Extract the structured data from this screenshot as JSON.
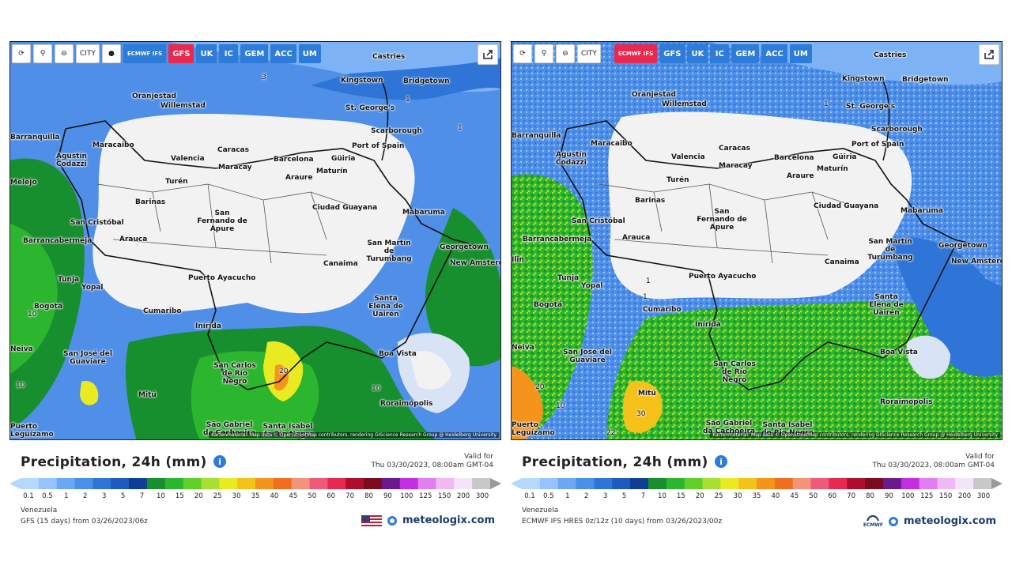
{
  "left": {
    "toolbar": {
      "buttons": [
        "⟳",
        "⚲",
        "⊖",
        "CITY",
        "●"
      ],
      "models": [
        "ECMWF IFS",
        "GFS",
        "UK",
        "IC",
        "GEM",
        "ACC",
        "UM"
      ],
      "active_model": "GFS"
    },
    "cities": [
      "Castries",
      "Kingstown",
      "Bridgetown",
      "St. George's",
      "Oranjestad",
      "Willemstad",
      "Scarborough",
      "Port of Spain",
      "Barranquilla",
      "Maracaibo",
      "Agustín Codazzi",
      "Caracas",
      "Valencia",
      "Maracay",
      "Barcelona",
      "Güiria",
      "Maturín",
      "Araure",
      "Turén",
      "Barinas",
      "San Fernando de Apure",
      "Ciudad Guayana",
      "Mabaruma",
      "San Cristóbal",
      "Barrancabermeja",
      "Arauca",
      "Georgetown",
      "San Martín de Turumbang",
      "New Amsterdam",
      "Canaima",
      "Tunja",
      "Yopal",
      "Puerto Ayacucho",
      "Bogotá",
      "Santa Elena de Uairén",
      "Cumaribo",
      "Inírida",
      "Boa Vista",
      "San José del Guaviare",
      "San Carlos de Río Negro",
      "Mitú",
      "Roraimópolis",
      "São Gabriel da Cachoeira",
      "Santa Isabel do Rio Negro",
      "Puerto Leguízamo",
      "Neiva",
      "Melejo"
    ],
    "contour_labels": [
      "3",
      "1",
      "1",
      "10",
      "20",
      "10",
      "10"
    ],
    "attribution": "Kartenmaterial: Map data © OpenStreetMap contributors, rendering GIScience Research Group @ Heidelberg University",
    "legend": {
      "title": "Precipitation, 24h (mm)",
      "valid_label": "Valid for",
      "valid_time": "Thu 03/30/2023, 08:00am GMT-04",
      "region": "Venezuela",
      "source": "GFS (15 days) from 03/26/2023/06z",
      "brand": "meteologix.com"
    }
  },
  "right": {
    "toolbar": {
      "buttons": [
        "⟳",
        "⚲",
        "⊖",
        "CITY"
      ],
      "models": [
        "ECMWF IFS",
        "GFS",
        "UK",
        "IC",
        "GEM",
        "ACC",
        "UM"
      ],
      "active_model": "ECMWF IFS"
    },
    "contour_labels": [
      "1",
      "1",
      "1",
      "10",
      "20",
      "30",
      "22"
    ],
    "attribution": "Kartenmaterial: Map data © OpenStreetMap contributors, rendering GIScience Research Group @ Heidelberg University",
    "legend": {
      "title": "Precipitation, 24h (mm)",
      "valid_label": "Valid for",
      "valid_time": "Thu 03/30/2023, 08:00am GMT-04",
      "region": "Venezuela",
      "source": "ECMWF IFS HRES 0z/12z (10 days) from 03/26/2023/00z",
      "brand": "meteologix.com",
      "ecmwf_logo": "ECMWF"
    }
  },
  "scale": {
    "ticks": [
      "0.1",
      "0.5",
      "1",
      "2",
      "3",
      "5",
      "7",
      "10",
      "15",
      "20",
      "25",
      "30",
      "35",
      "40",
      "45",
      "50",
      "60",
      "70",
      "80",
      "90",
      "100",
      "125",
      "150",
      "200",
      "300"
    ],
    "colors": [
      "#b6d7ff",
      "#96c3ff",
      "#6aa8f5",
      "#4a8fe8",
      "#2f75d8",
      "#1d5bbf",
      "#0f3e94",
      "#178f2e",
      "#2cb52e",
      "#5fcf2a",
      "#a8e032",
      "#e9ea22",
      "#f5c21a",
      "#f5941a",
      "#f26e1f",
      "#f4937a",
      "#ef5a78",
      "#e8284e",
      "#b00d2c",
      "#7c0b1e",
      "#6a1a8c",
      "#c12fe0",
      "#e07ef2",
      "#f0b8f5",
      "#f3e4f7",
      "#c8c8c8"
    ]
  },
  "colors": {
    "model_button": "#2f7bd9",
    "model_active": "#e8284e",
    "dry": "#f2f2f2",
    "sea_blue": "#4f8fe8"
  }
}
